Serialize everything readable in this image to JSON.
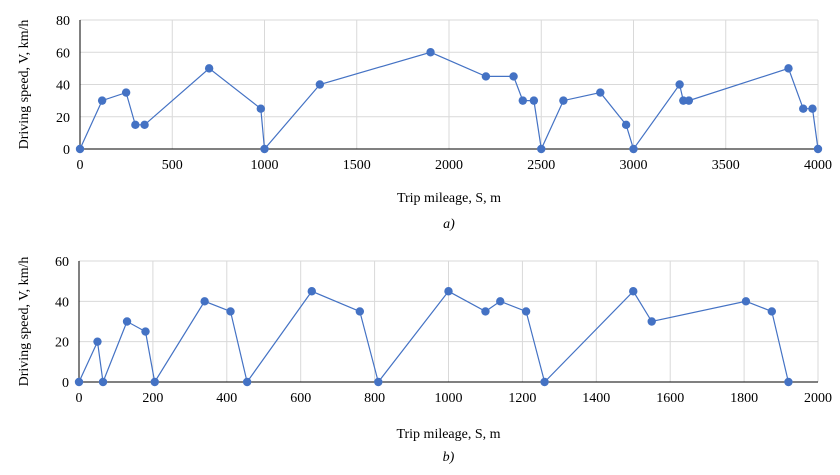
{
  "figure": {
    "panels": [
      "a)",
      "b)"
    ]
  },
  "style": {
    "line_color": "#4472C4",
    "marker_color": "#4472C4",
    "grid_color": "#d9d9d9",
    "axis_color": "#000000"
  },
  "chart_data": [
    {
      "type": "line",
      "panel_label": "a)",
      "xlabel": "Trip mileage, S, m",
      "ylabel": "Driving speed, V, km/h",
      "xlim": [
        0,
        4000
      ],
      "ylim": [
        0,
        80
      ],
      "xticks": [
        0,
        500,
        1000,
        1500,
        2000,
        2500,
        3000,
        3500,
        4000
      ],
      "yticks": [
        0,
        20,
        40,
        60,
        80
      ],
      "grid": true,
      "markers": true,
      "series": [
        {
          "x": [
            0,
            120,
            250,
            300,
            350,
            700,
            980,
            1000,
            1300,
            1900,
            2200,
            2350,
            2400,
            2460,
            2500,
            2620,
            2820,
            2960,
            3000,
            3250,
            3270,
            3300,
            3840,
            3920,
            3970,
            4000
          ],
          "y": [
            0,
            30,
            35,
            15,
            15,
            50,
            25,
            0,
            40,
            60,
            45,
            45,
            30,
            30,
            0,
            30,
            35,
            15,
            0,
            40,
            30,
            30,
            50,
            25,
            25,
            0
          ]
        }
      ]
    },
    {
      "type": "line",
      "panel_label": "b)",
      "xlabel": "Trip mileage, S, m",
      "ylabel": "Driving speed, V, km/h",
      "xlim": [
        0,
        2000
      ],
      "ylim": [
        0,
        60
      ],
      "xticks": [
        0,
        200,
        400,
        600,
        800,
        1000,
        1200,
        1400,
        1600,
        1800,
        2000
      ],
      "yticks": [
        0,
        20,
        40,
        60
      ],
      "grid": true,
      "markers": true,
      "series": [
        {
          "x": [
            0,
            50,
            65,
            130,
            180,
            205,
            340,
            410,
            455,
            630,
            760,
            810,
            1000,
            1100,
            1140,
            1210,
            1260,
            1500,
            1550,
            1805,
            1875,
            1920
          ],
          "y": [
            0,
            20,
            0,
            30,
            25,
            0,
            40,
            35,
            0,
            45,
            35,
            0,
            45,
            35,
            40,
            35,
            0,
            45,
            30,
            40,
            35,
            0
          ]
        }
      ]
    }
  ]
}
